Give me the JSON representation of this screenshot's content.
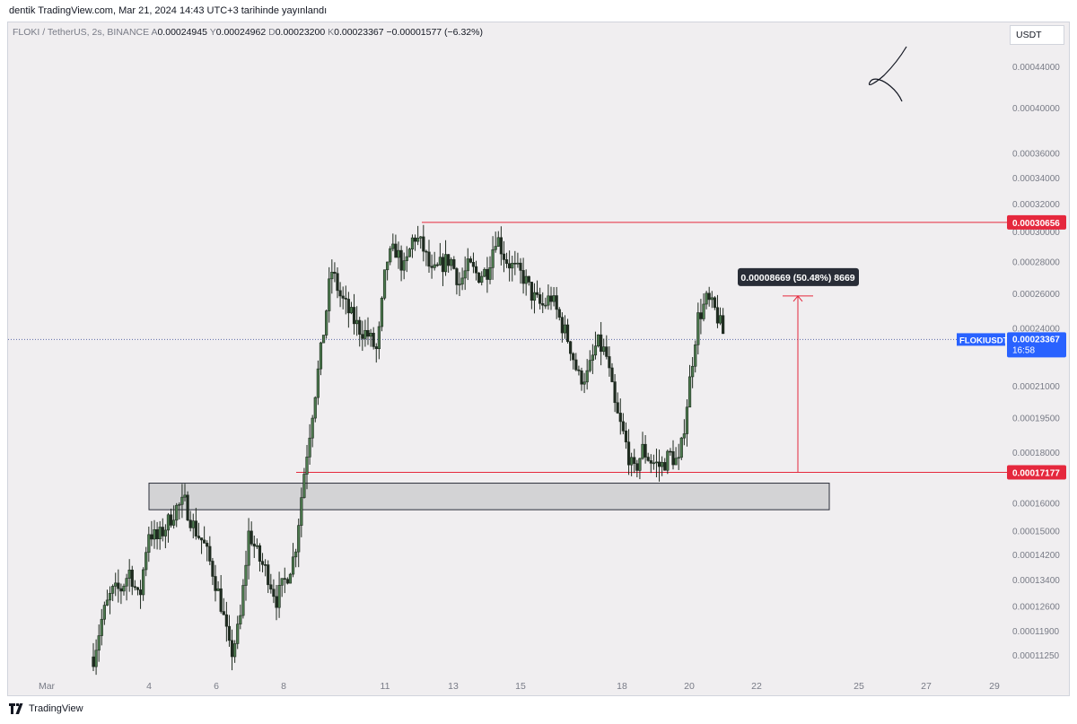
{
  "header": {
    "published": "dentik TradingView.com, Mar 21, 2024 14:43 UTC+3 tarihinde yayınlandı"
  },
  "legend": {
    "symbol": "FLOKI / TetherUS, 2s, BINANCE",
    "open_label": "A",
    "open": "0.00024945",
    "high_label": "Y",
    "high": "0.00024962",
    "low_label": "D",
    "low": "0.00023200",
    "close_label": "K",
    "close": "0.00023367",
    "change": "−0.00001577 (−6.32%)"
  },
  "currency_button": "USDT",
  "footer": {
    "brand": "TradingView"
  },
  "colors": {
    "up": "#4c7a4e",
    "down": "#1f2b20",
    "level": "#e5283d",
    "price_tag": "#2962ff",
    "zone_fill": "#c9c9cc",
    "background": "#f0eef0"
  },
  "chart_data": {
    "type": "candlestick",
    "symbol": "FLOKIUSDT",
    "timeframe": "2s",
    "exchange": "BINANCE",
    "x_ticks": [
      "Mar",
      "4",
      "6",
      "8",
      "11",
      "13",
      "15",
      "18",
      "20",
      "22",
      "25",
      "27",
      "29"
    ],
    "y_ticks": [
      "0.00044000",
      "0.00040000",
      "0.00036000",
      "0.00034000",
      "0.00032000",
      "0.00030000",
      "0.00028000",
      "0.00026000",
      "0.00024000",
      "0.00021000",
      "0.00019500",
      "0.00018000",
      "0.00016000",
      "0.00015000",
      "0.00014200",
      "0.00013400",
      "0.00012600",
      "0.00011900",
      "0.00011250"
    ],
    "y_scale": "log",
    "last_price": {
      "label": "FLOKIUSDT",
      "value": "0.00023367",
      "countdown": "16:58"
    },
    "levels": [
      {
        "value": "0.00030656"
      },
      {
        "value": "0.00017177"
      }
    ],
    "measure": {
      "label": "0.00008669 (50.48%) 8669",
      "from": 0.00017177,
      "to": 0.00025846
    },
    "zone": {
      "low": 0.0001575,
      "high": 0.0001675
    },
    "close_path": [
      [
        0,
        0.000112
      ],
      [
        1,
        0.000123
      ],
      [
        2,
        0.00013
      ],
      [
        3,
        0.000131
      ],
      [
        4,
        0.000137
      ],
      [
        5,
        0.000127
      ],
      [
        6,
        0.00015
      ],
      [
        7,
        0.000147
      ],
      [
        8,
        0.000152
      ],
      [
        9,
        0.000158
      ],
      [
        10,
        0.00016
      ],
      [
        11,
        0.000151
      ],
      [
        12,
        0.000146
      ],
      [
        13,
        0.000137
      ],
      [
        14,
        0.000126
      ],
      [
        15,
        0.000112
      ],
      [
        16,
        0.000121
      ],
      [
        17,
        0.00015
      ],
      [
        18,
        0.000141
      ],
      [
        19,
        0.000136
      ],
      [
        20,
        0.000128
      ],
      [
        21,
        0.000134
      ],
      [
        22,
        0.000142
      ],
      [
        23,
        0.000171
      ],
      [
        24,
        0.0002
      ],
      [
        25,
        0.000232
      ],
      [
        26,
        0.000275
      ],
      [
        27,
        0.000258
      ],
      [
        28,
        0.000248
      ],
      [
        29,
        0.00024
      ],
      [
        30,
        0.000236
      ],
      [
        31,
        0.000227
      ],
      [
        32,
        0.00028
      ],
      [
        33,
        0.000288
      ],
      [
        34,
        0.000274
      ],
      [
        35,
        0.000298
      ],
      [
        36,
        0.000289
      ],
      [
        37,
        0.000271
      ],
      [
        38,
        0.000278
      ],
      [
        39,
        0.000282
      ],
      [
        40,
        0.000266
      ],
      [
        41,
        0.000277
      ],
      [
        42,
        0.000271
      ],
      [
        43,
        0.000274
      ],
      [
        44,
        0.000298
      ],
      [
        45,
        0.000282
      ],
      [
        46,
        0.000275
      ],
      [
        47,
        0.00027
      ],
      [
        48,
        0.000258
      ],
      [
        49,
        0.000252
      ],
      [
        50,
        0.000258
      ],
      [
        51,
        0.000244
      ],
      [
        52,
        0.000232
      ],
      [
        53,
        0.000214
      ],
      [
        54,
        0.000215
      ],
      [
        55,
        0.000232
      ],
      [
        56,
        0.000226
      ],
      [
        57,
        0.000199
      ],
      [
        58,
        0.000186
      ],
      [
        59,
        0.000171
      ],
      [
        60,
        0.000181
      ],
      [
        61,
        0.000176
      ],
      [
        62,
        0.000174
      ],
      [
        63,
        0.000179
      ],
      [
        64,
        0.000175
      ],
      [
        65,
        0.000207
      ],
      [
        66,
        0.000245
      ],
      [
        67,
        0.000256
      ],
      [
        68,
        0.000249
      ],
      [
        69,
        0.000234
      ]
    ]
  }
}
